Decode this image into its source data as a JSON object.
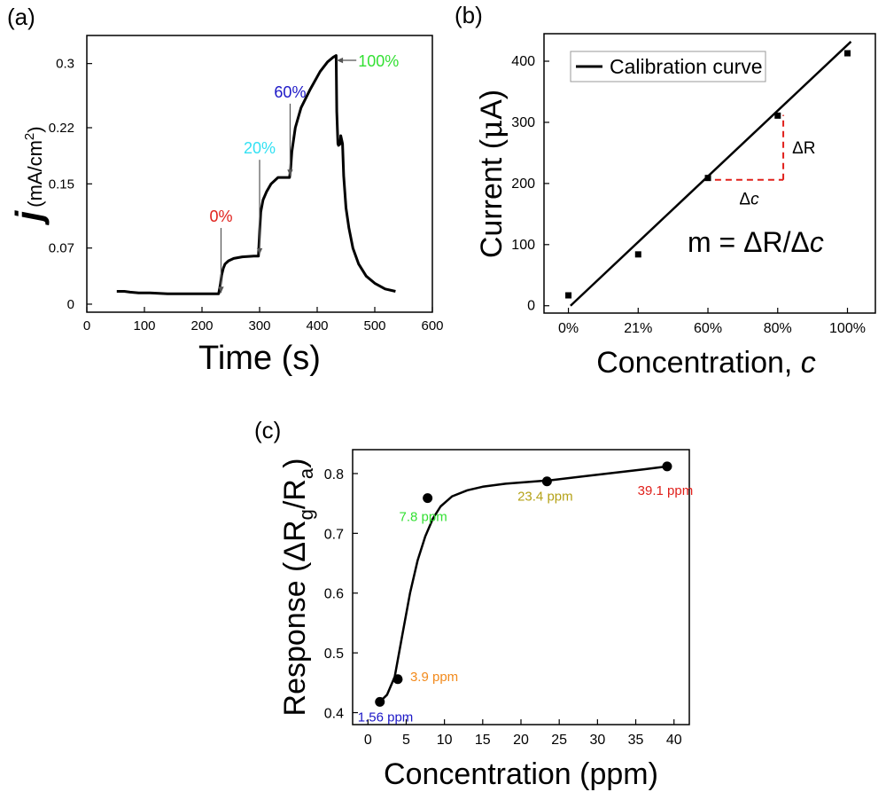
{
  "chart_data": [
    {
      "panel_label": "(a)",
      "type": "line",
      "xlabel": "Time (s)",
      "ylabel": {
        "symbol": "j",
        "unit_prefix": "(mA/cm",
        "unit_exp": "2",
        "unit_suffix": ")"
      },
      "xlim": [
        0,
        600
      ],
      "ylim": [
        -0.01,
        0.335
      ],
      "xticks": [
        0,
        100,
        200,
        300,
        400,
        500,
        600
      ],
      "yticks": [
        0,
        0.07,
        0.15,
        0.22,
        0.3
      ],
      "ytick_labels": [
        "0",
        "0.07",
        "0.15",
        "0.22",
        "0.3"
      ],
      "series": [
        {
          "x": [
            52,
            65,
            75,
            90,
            110,
            140,
            180,
            210,
            229,
            232,
            234,
            237,
            240,
            246,
            255,
            270,
            290,
            298,
            300,
            302,
            306,
            312,
            320,
            332,
            346,
            352,
            354,
            356,
            362,
            372,
            388,
            405,
            418,
            428,
            433,
            434,
            436,
            437,
            440,
            441,
            444,
            446,
            450,
            455,
            462,
            472,
            485,
            500,
            518,
            536
          ],
          "y": [
            0.016,
            0.016,
            0.015,
            0.014,
            0.014,
            0.013,
            0.013,
            0.013,
            0.013,
            0.025,
            0.036,
            0.045,
            0.05,
            0.054,
            0.057,
            0.059,
            0.06,
            0.06,
            0.09,
            0.115,
            0.13,
            0.14,
            0.15,
            0.158,
            0.158,
            0.158,
            0.17,
            0.19,
            0.22,
            0.245,
            0.268,
            0.29,
            0.302,
            0.308,
            0.31,
            0.24,
            0.2,
            0.198,
            0.2,
            0.21,
            0.2,
            0.16,
            0.12,
            0.095,
            0.07,
            0.05,
            0.035,
            0.026,
            0.019,
            0.016
          ]
        }
      ],
      "annotations": [
        {
          "text": "0%",
          "color": "#e0201b",
          "tail": [
            233,
            0.095
          ],
          "head": [
            233,
            0.014
          ]
        },
        {
          "text": "20%",
          "color": "#33e1f3",
          "tail": [
            300,
            0.18
          ],
          "head": [
            300,
            0.062
          ]
        },
        {
          "text": "60%",
          "color": "#1c17c7",
          "tail": [
            353,
            0.25
          ],
          "head": [
            353,
            0.16
          ]
        },
        {
          "text": "100%",
          "color": "#33e033",
          "tail": [
            468,
            0.304
          ],
          "head": [
            434,
            0.304
          ]
        }
      ]
    },
    {
      "panel_label": "(b)",
      "type": "scatter",
      "xlabel": "Concentration, ",
      "xlabel_italic": "c",
      "ylabel_prefix": "Current (",
      "ylabel_mu": "μ",
      "ylabel_suffix": "A)",
      "categories": [
        "0%",
        "21%",
        "60%",
        "80%",
        "100%"
      ],
      "points_y": [
        17,
        84,
        209,
        311,
        413
      ],
      "fit_line": {
        "x": [
          0.03,
          4.05
        ],
        "y": [
          0,
          432
        ]
      },
      "legend": "Calibration curve",
      "legend_position": "top-left",
      "ylim": [
        -12,
        445
      ],
      "yticks": [
        0,
        100,
        200,
        300,
        400
      ],
      "slope_triangle": {
        "x0": 2.1,
        "x1": 3.08,
        "y0": 206,
        "y1": 312,
        "color": "#e0201b",
        "label_dr": "ΔR",
        "label_dc_prefix": "Δ",
        "label_dc_italic": "c"
      },
      "equation_prefix": "m = ΔR/Δ",
      "equation_italic": "c"
    },
    {
      "panel_label": "(c)",
      "type": "scatter",
      "xlabel": "Concentration (ppm)",
      "ylabel": {
        "prefix": "Response (ΔR",
        "sub1": "g",
        "mid": "/R",
        "sub2": "a",
        "suffix": ")"
      },
      "xlim": [
        -2,
        42
      ],
      "ylim": [
        0.38,
        0.84
      ],
      "xticks": [
        0,
        5,
        10,
        15,
        20,
        25,
        30,
        35,
        40
      ],
      "yticks": [
        0.4,
        0.5,
        0.6,
        0.7,
        0.8
      ],
      "ytick_labels": [
        "0.4",
        "0.5",
        "0.6",
        "0.7",
        "0.8"
      ],
      "points": [
        {
          "x": 1.56,
          "y": 0.418,
          "label": "1.56 ppm",
          "color": "#1c17c7"
        },
        {
          "x": 3.9,
          "y": 0.456,
          "label": "3.9 ppm",
          "color": "#f28a1c"
        },
        {
          "x": 7.8,
          "y": 0.759,
          "label": "7.8 ppm",
          "color": "#33e033"
        },
        {
          "x": 23.4,
          "y": 0.787,
          "label": "23.4 ppm",
          "color": "#b5a218"
        },
        {
          "x": 39.1,
          "y": 0.812,
          "label": "39.1 ppm",
          "color": "#e0201b"
        }
      ],
      "fit_curve": {
        "x": [
          1.56,
          2.5,
          3.5,
          4.5,
          5.5,
          6.5,
          7.5,
          8.5,
          9.5,
          11,
          13,
          15,
          18,
          21,
          24,
          28,
          32,
          36,
          39.1
        ],
        "y": [
          0.418,
          0.43,
          0.46,
          0.53,
          0.6,
          0.655,
          0.695,
          0.725,
          0.745,
          0.762,
          0.772,
          0.778,
          0.783,
          0.786,
          0.789,
          0.795,
          0.801,
          0.807,
          0.812
        ]
      }
    }
  ]
}
